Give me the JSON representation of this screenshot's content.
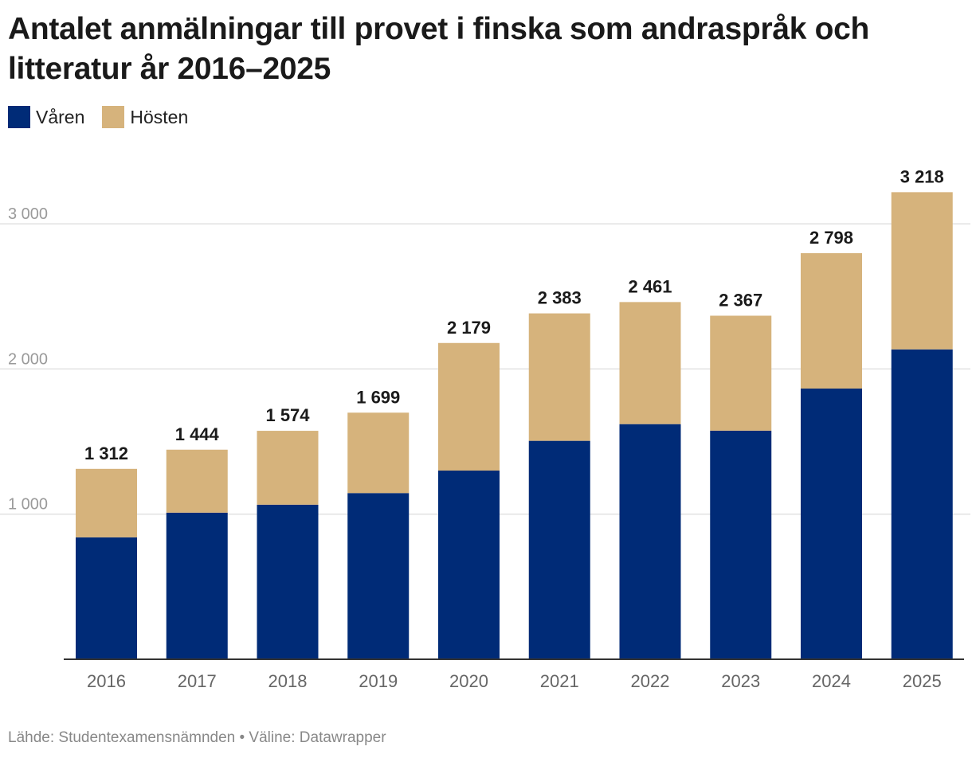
{
  "chart_data": {
    "type": "bar",
    "stacked": true,
    "title": "Antalet anmälningar till provet i finska som andraspråk och litteratur år 2016–2025",
    "categories": [
      "2016",
      "2017",
      "2018",
      "2019",
      "2020",
      "2021",
      "2022",
      "2023",
      "2024",
      "2025"
    ],
    "series": [
      {
        "name": "Våren",
        "color": "#002b77",
        "values": [
          840,
          1010,
          1065,
          1145,
          1300,
          1505,
          1620,
          1575,
          1865,
          2135
        ]
      },
      {
        "name": "Hösten",
        "color": "#d6b37c",
        "values": [
          472,
          434,
          509,
          554,
          879,
          878,
          841,
          792,
          933,
          1083
        ]
      }
    ],
    "totals": [
      1312,
      1444,
      1574,
      1699,
      2179,
      2383,
      2461,
      2367,
      2798,
      3218
    ],
    "total_labels": [
      "1 312",
      "1 444",
      "1 574",
      "1 699",
      "2 179",
      "2 383",
      "2 461",
      "2 367",
      "2 798",
      "3 218"
    ],
    "yticks": [
      1000,
      2000,
      3000
    ],
    "ytick_labels": [
      "1 000",
      "2 000",
      "3 000"
    ],
    "ylim": [
      0,
      3218
    ],
    "xlabel": "",
    "ylabel": "",
    "grid": true,
    "legend_position": "top-left",
    "source": "Lähde: Studentexamensnämnden • Väline: Datawrapper"
  },
  "colors": {
    "varen": "#002b77",
    "hosten": "#d6b37c",
    "grid": "#e2e2e2",
    "axis": "#333333",
    "tick_text": "#9a9a9a",
    "xtick_text": "#666666"
  }
}
